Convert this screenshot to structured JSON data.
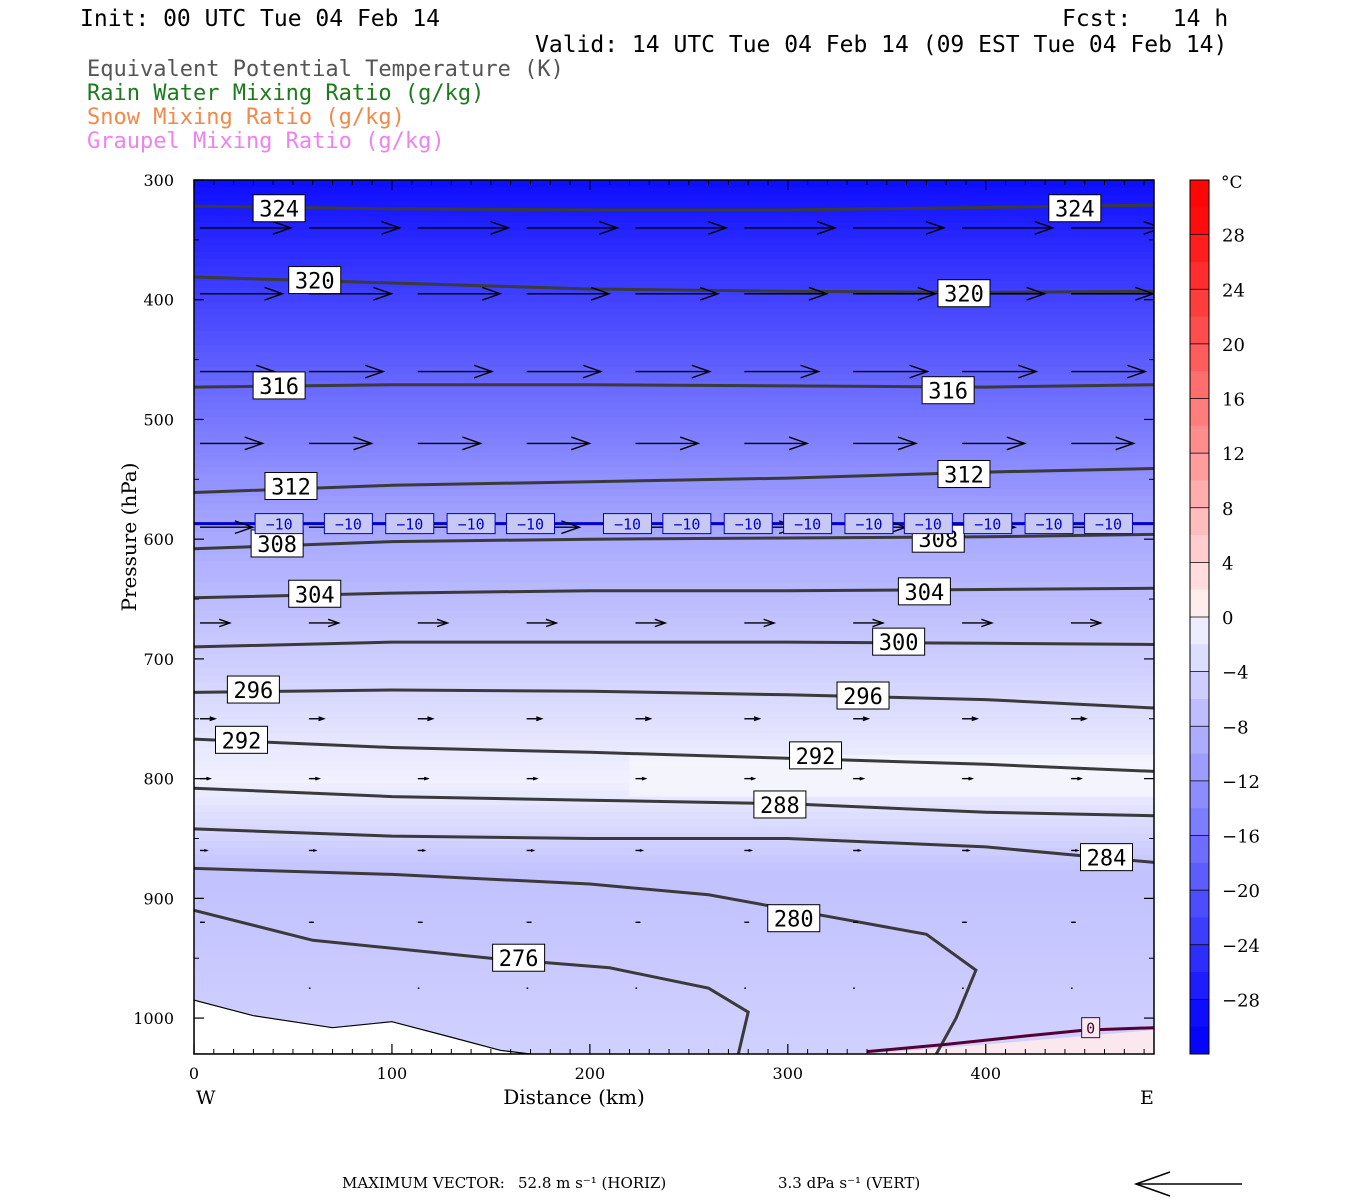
{
  "header": {
    "init": "Init: 00 UTC Tue 04 Feb 14",
    "fcst": "Fcst:   14 h",
    "valid": "Valid: 14 UTC Tue 04 Feb 14 (09 EST Tue 04 Feb 14)"
  },
  "fields": [
    {
      "label": "Equivalent Potential Temperature (K)",
      "color": "#555555"
    },
    {
      "label": "Rain Water Mixing Ratio (g/kg)",
      "color": "#1e7a1e"
    },
    {
      "label": "Snow Mixing Ratio (g/kg)",
      "color": "#f08a4b"
    },
    {
      "label": "Graupel Mixing Ratio (g/kg)",
      "color": "#ee82ee"
    }
  ],
  "footer": {
    "max_vector_label": "MAXIMUM VECTOR:",
    "horiz": "52.8 m s⁻¹ (HORIZ)",
    "vert": "3.3 dPa s⁻¹ (VERT)"
  },
  "chart_data": {
    "type": "cross-section",
    "xlabel": "Distance (km)",
    "ylabel": "Pressure (hPa)",
    "xlim": [
      0,
      485
    ],
    "ylim": [
      300,
      1030
    ],
    "y_inverted": true,
    "xticks": [
      0,
      100,
      200,
      300,
      400
    ],
    "yticks": [
      300,
      400,
      500,
      600,
      700,
      800,
      900,
      1000
    ],
    "x_end_labels": {
      "left": "W",
      "right": "E"
    },
    "colorbar": {
      "unit": "°C",
      "ticks": [
        28,
        24,
        20,
        16,
        12,
        8,
        4,
        0,
        -4,
        -8,
        -12,
        -16,
        -20,
        -24,
        -28
      ],
      "range": [
        -32,
        32
      ],
      "step": 2
    },
    "theta_e_contours": [
      {
        "value": 324,
        "points": [
          [
            0,
            322
          ],
          [
            100,
            324
          ],
          [
            200,
            325
          ],
          [
            300,
            325
          ],
          [
            400,
            323
          ],
          [
            485,
            321
          ]
        ],
        "labels": [
          [
            43,
            324
          ],
          [
            445,
            324
          ]
        ]
      },
      {
        "value": 320,
        "points": [
          [
            0,
            381
          ],
          [
            100,
            386
          ],
          [
            200,
            391
          ],
          [
            300,
            393
          ],
          [
            400,
            394
          ],
          [
            485,
            393
          ]
        ],
        "labels": [
          [
            61,
            384
          ],
          [
            389,
            395
          ]
        ]
      },
      {
        "value": 316,
        "points": [
          [
            0,
            473
          ],
          [
            100,
            471
          ],
          [
            200,
            471
          ],
          [
            300,
            472
          ],
          [
            400,
            473
          ],
          [
            485,
            471
          ]
        ],
        "labels": [
          [
            43,
            472
          ],
          [
            381,
            476
          ]
        ]
      },
      {
        "value": 312,
        "points": [
          [
            0,
            561
          ],
          [
            100,
            555
          ],
          [
            200,
            552
          ],
          [
            300,
            549
          ],
          [
            400,
            544
          ],
          [
            485,
            541
          ]
        ],
        "labels": [
          [
            49,
            556
          ],
          [
            389,
            546
          ]
        ]
      },
      {
        "value": 308,
        "points": [
          [
            0,
            608
          ],
          [
            100,
            602
          ],
          [
            200,
            600
          ],
          [
            300,
            599
          ],
          [
            400,
            598
          ],
          [
            485,
            596
          ]
        ],
        "labels": [
          [
            42,
            604
          ],
          [
            376,
            600
          ]
        ]
      },
      {
        "value": 304,
        "points": [
          [
            0,
            649
          ],
          [
            100,
            645
          ],
          [
            200,
            643
          ],
          [
            300,
            643
          ],
          [
            400,
            642
          ],
          [
            485,
            641
          ]
        ],
        "labels": [
          [
            61,
            646
          ],
          [
            369,
            644
          ]
        ]
      },
      {
        "value": 300,
        "points": [
          [
            0,
            690
          ],
          [
            100,
            686
          ],
          [
            200,
            686
          ],
          [
            300,
            686
          ],
          [
            400,
            687
          ],
          [
            485,
            688
          ]
        ],
        "labels": [
          [
            356,
            686
          ]
        ]
      },
      {
        "value": 296,
        "points": [
          [
            0,
            728
          ],
          [
            100,
            726
          ],
          [
            200,
            727
          ],
          [
            300,
            730
          ],
          [
            400,
            734
          ],
          [
            485,
            741
          ]
        ],
        "labels": [
          [
            30,
            726
          ],
          [
            338,
            731
          ]
        ]
      },
      {
        "value": 292,
        "points": [
          [
            0,
            767
          ],
          [
            100,
            774
          ],
          [
            200,
            778
          ],
          [
            300,
            783
          ],
          [
            400,
            788
          ],
          [
            485,
            794
          ]
        ],
        "labels": [
          [
            24,
            768
          ],
          [
            314,
            781
          ]
        ]
      },
      {
        "value": 288,
        "points": [
          [
            0,
            808
          ],
          [
            100,
            815
          ],
          [
            200,
            818
          ],
          [
            300,
            821
          ],
          [
            400,
            828
          ],
          [
            485,
            831
          ]
        ],
        "labels": [
          [
            296,
            822
          ]
        ]
      },
      {
        "value": 284,
        "points": [
          [
            0,
            842
          ],
          [
            100,
            848
          ],
          [
            200,
            850
          ],
          [
            300,
            850
          ],
          [
            400,
            857
          ],
          [
            485,
            870
          ]
        ],
        "labels": [
          [
            461,
            866
          ]
        ]
      },
      {
        "value": 280,
        "points": [
          [
            0,
            875
          ],
          [
            100,
            880
          ],
          [
            200,
            888
          ],
          [
            260,
            897
          ],
          [
            320,
            915
          ],
          [
            370,
            930
          ],
          [
            395,
            960
          ],
          [
            385,
            1000
          ],
          [
            375,
            1030
          ]
        ],
        "labels": [
          [
            303,
            917
          ]
        ]
      },
      {
        "value": 276,
        "points": [
          [
            0,
            910
          ],
          [
            60,
            935
          ],
          [
            150,
            950
          ],
          [
            210,
            958
          ],
          [
            260,
            975
          ],
          [
            280,
            995
          ],
          [
            275,
            1030
          ]
        ],
        "labels": [
          [
            164,
            950
          ]
        ]
      }
    ],
    "isotherms": [
      {
        "value": -10,
        "color": "#0000cc",
        "pressure": 587,
        "labels": [
          [
            43,
            -10
          ],
          [
            78,
            -10
          ],
          [
            109,
            -10
          ],
          [
            140,
            -10
          ],
          [
            170,
            -10
          ],
          [
            219,
            -10
          ],
          [
            249,
            -10
          ],
          [
            280,
            -10
          ],
          [
            310,
            -10
          ],
          [
            341,
            -10
          ],
          [
            371,
            -10
          ],
          [
            401,
            -10
          ],
          [
            432,
            -10
          ],
          [
            462,
            -10
          ]
        ]
      },
      {
        "value": 0,
        "color": "#550033",
        "points": [
          [
            340,
            1028
          ],
          [
            380,
            1022
          ],
          [
            420,
            1015
          ],
          [
            450,
            1010
          ],
          [
            485,
            1008
          ]
        ],
        "labels": [
          [
            453,
            1008
          ]
        ]
      }
    ],
    "wind_vectors": [
      {
        "pressure": 340,
        "x": [
          0,
          55,
          110,
          165,
          220,
          275,
          330,
          385,
          440
        ],
        "u_kmh": [
          55,
          55,
          55,
          55,
          55,
          55,
          55,
          55,
          55
        ]
      },
      {
        "pressure": 395,
        "x": [
          0,
          55,
          110,
          165,
          220,
          275,
          330,
          385,
          440
        ],
        "u_kmh": [
          50,
          50,
          50,
          50,
          50,
          50,
          50,
          50,
          50
        ]
      },
      {
        "pressure": 460,
        "x": [
          0,
          55,
          110,
          165,
          220,
          275,
          330,
          385,
          440
        ],
        "u_kmh": [
          45,
          45,
          45,
          45,
          45,
          45,
          45,
          45,
          45
        ]
      },
      {
        "pressure": 520,
        "x": [
          0,
          55,
          110,
          165,
          220,
          275,
          330,
          385,
          440
        ],
        "u_kmh": [
          38,
          38,
          38,
          38,
          38,
          38,
          38,
          38,
          38
        ]
      },
      {
        "pressure": 590,
        "x": [
          0,
          55,
          110,
          165,
          220,
          275,
          330,
          385,
          440
        ],
        "u_kmh": [
          32,
          32,
          32,
          32,
          32,
          32,
          32,
          32,
          32
        ]
      },
      {
        "pressure": 670,
        "x": [
          0,
          55,
          110,
          165,
          220,
          275,
          330,
          385,
          440
        ],
        "u_kmh": [
          18,
          18,
          18,
          18,
          18,
          18,
          18,
          18,
          18
        ]
      },
      {
        "pressure": 750,
        "x": [
          0,
          55,
          110,
          165,
          220,
          275,
          330,
          385,
          440
        ],
        "u_kmh": [
          9,
          9,
          9,
          9,
          9,
          9,
          9,
          9,
          9
        ]
      },
      {
        "pressure": 800,
        "x": [
          0,
          55,
          110,
          165,
          220,
          275,
          330,
          385,
          440
        ],
        "u_kmh": [
          6,
          6,
          6,
          6,
          6,
          6,
          6,
          6,
          6
        ]
      },
      {
        "pressure": 860,
        "x": [
          0,
          55,
          110,
          165,
          220,
          275,
          330,
          385,
          440
        ],
        "u_kmh": [
          4,
          4,
          4,
          4,
          4,
          4,
          4,
          4,
          4
        ]
      },
      {
        "pressure": 920,
        "x": [
          0,
          55,
          110,
          165,
          220,
          275,
          330,
          385,
          440
        ],
        "u_kmh": [
          3,
          3,
          3,
          3,
          3,
          3,
          3,
          3,
          3
        ]
      },
      {
        "pressure": 975,
        "x": [
          55,
          110,
          165,
          220,
          275,
          330,
          385,
          440
        ],
        "u_kmh": [
          1,
          1,
          1,
          1,
          1,
          1,
          1,
          1
        ]
      }
    ],
    "terrain": [
      [
        0,
        985
      ],
      [
        30,
        998
      ],
      [
        70,
        1008
      ],
      [
        100,
        1003
      ],
      [
        130,
        1016
      ],
      [
        155,
        1027
      ],
      [
        170,
        1030
      ]
    ]
  }
}
